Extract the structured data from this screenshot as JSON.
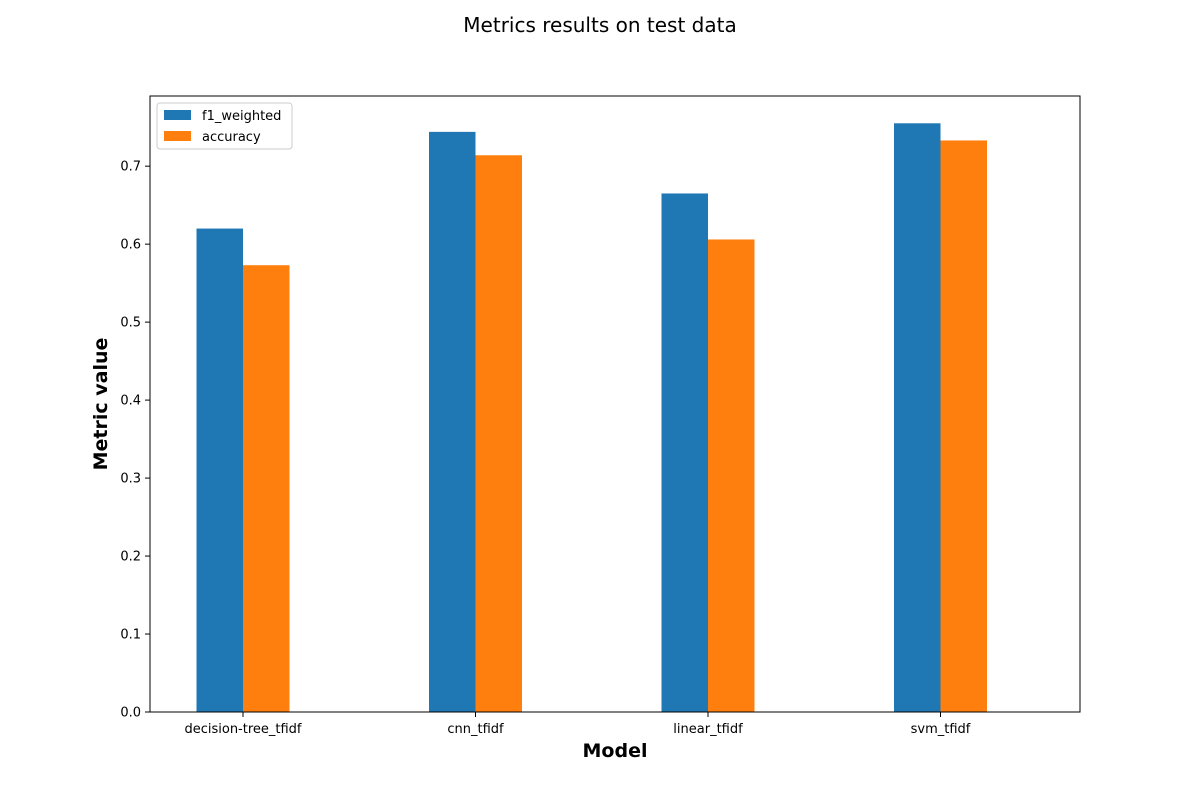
{
  "chart_data": {
    "type": "bar",
    "title": "Metrics results on test data",
    "xlabel": "Model",
    "ylabel": "Metric value",
    "categories": [
      "decision-tree_tfidf",
      "cnn_tfidf",
      "linear_tfidf",
      "svm_tfidf"
    ],
    "series": [
      {
        "name": "f1_weighted",
        "color": "#1f77b4",
        "values": [
          0.62,
          0.744,
          0.665,
          0.755
        ]
      },
      {
        "name": "accuracy",
        "color": "#ff7f0e",
        "values": [
          0.573,
          0.714,
          0.606,
          0.733
        ]
      }
    ],
    "ylim": [
      0,
      0.79
    ],
    "yticks": [
      0.0,
      0.1,
      0.2,
      0.3,
      0.4,
      0.5,
      0.6,
      0.7
    ],
    "ytick_labels": [
      "0.0",
      "0.1",
      "0.2",
      "0.3",
      "0.4",
      "0.5",
      "0.6",
      "0.7"
    ],
    "grid": false,
    "legend_position": "top-left"
  }
}
